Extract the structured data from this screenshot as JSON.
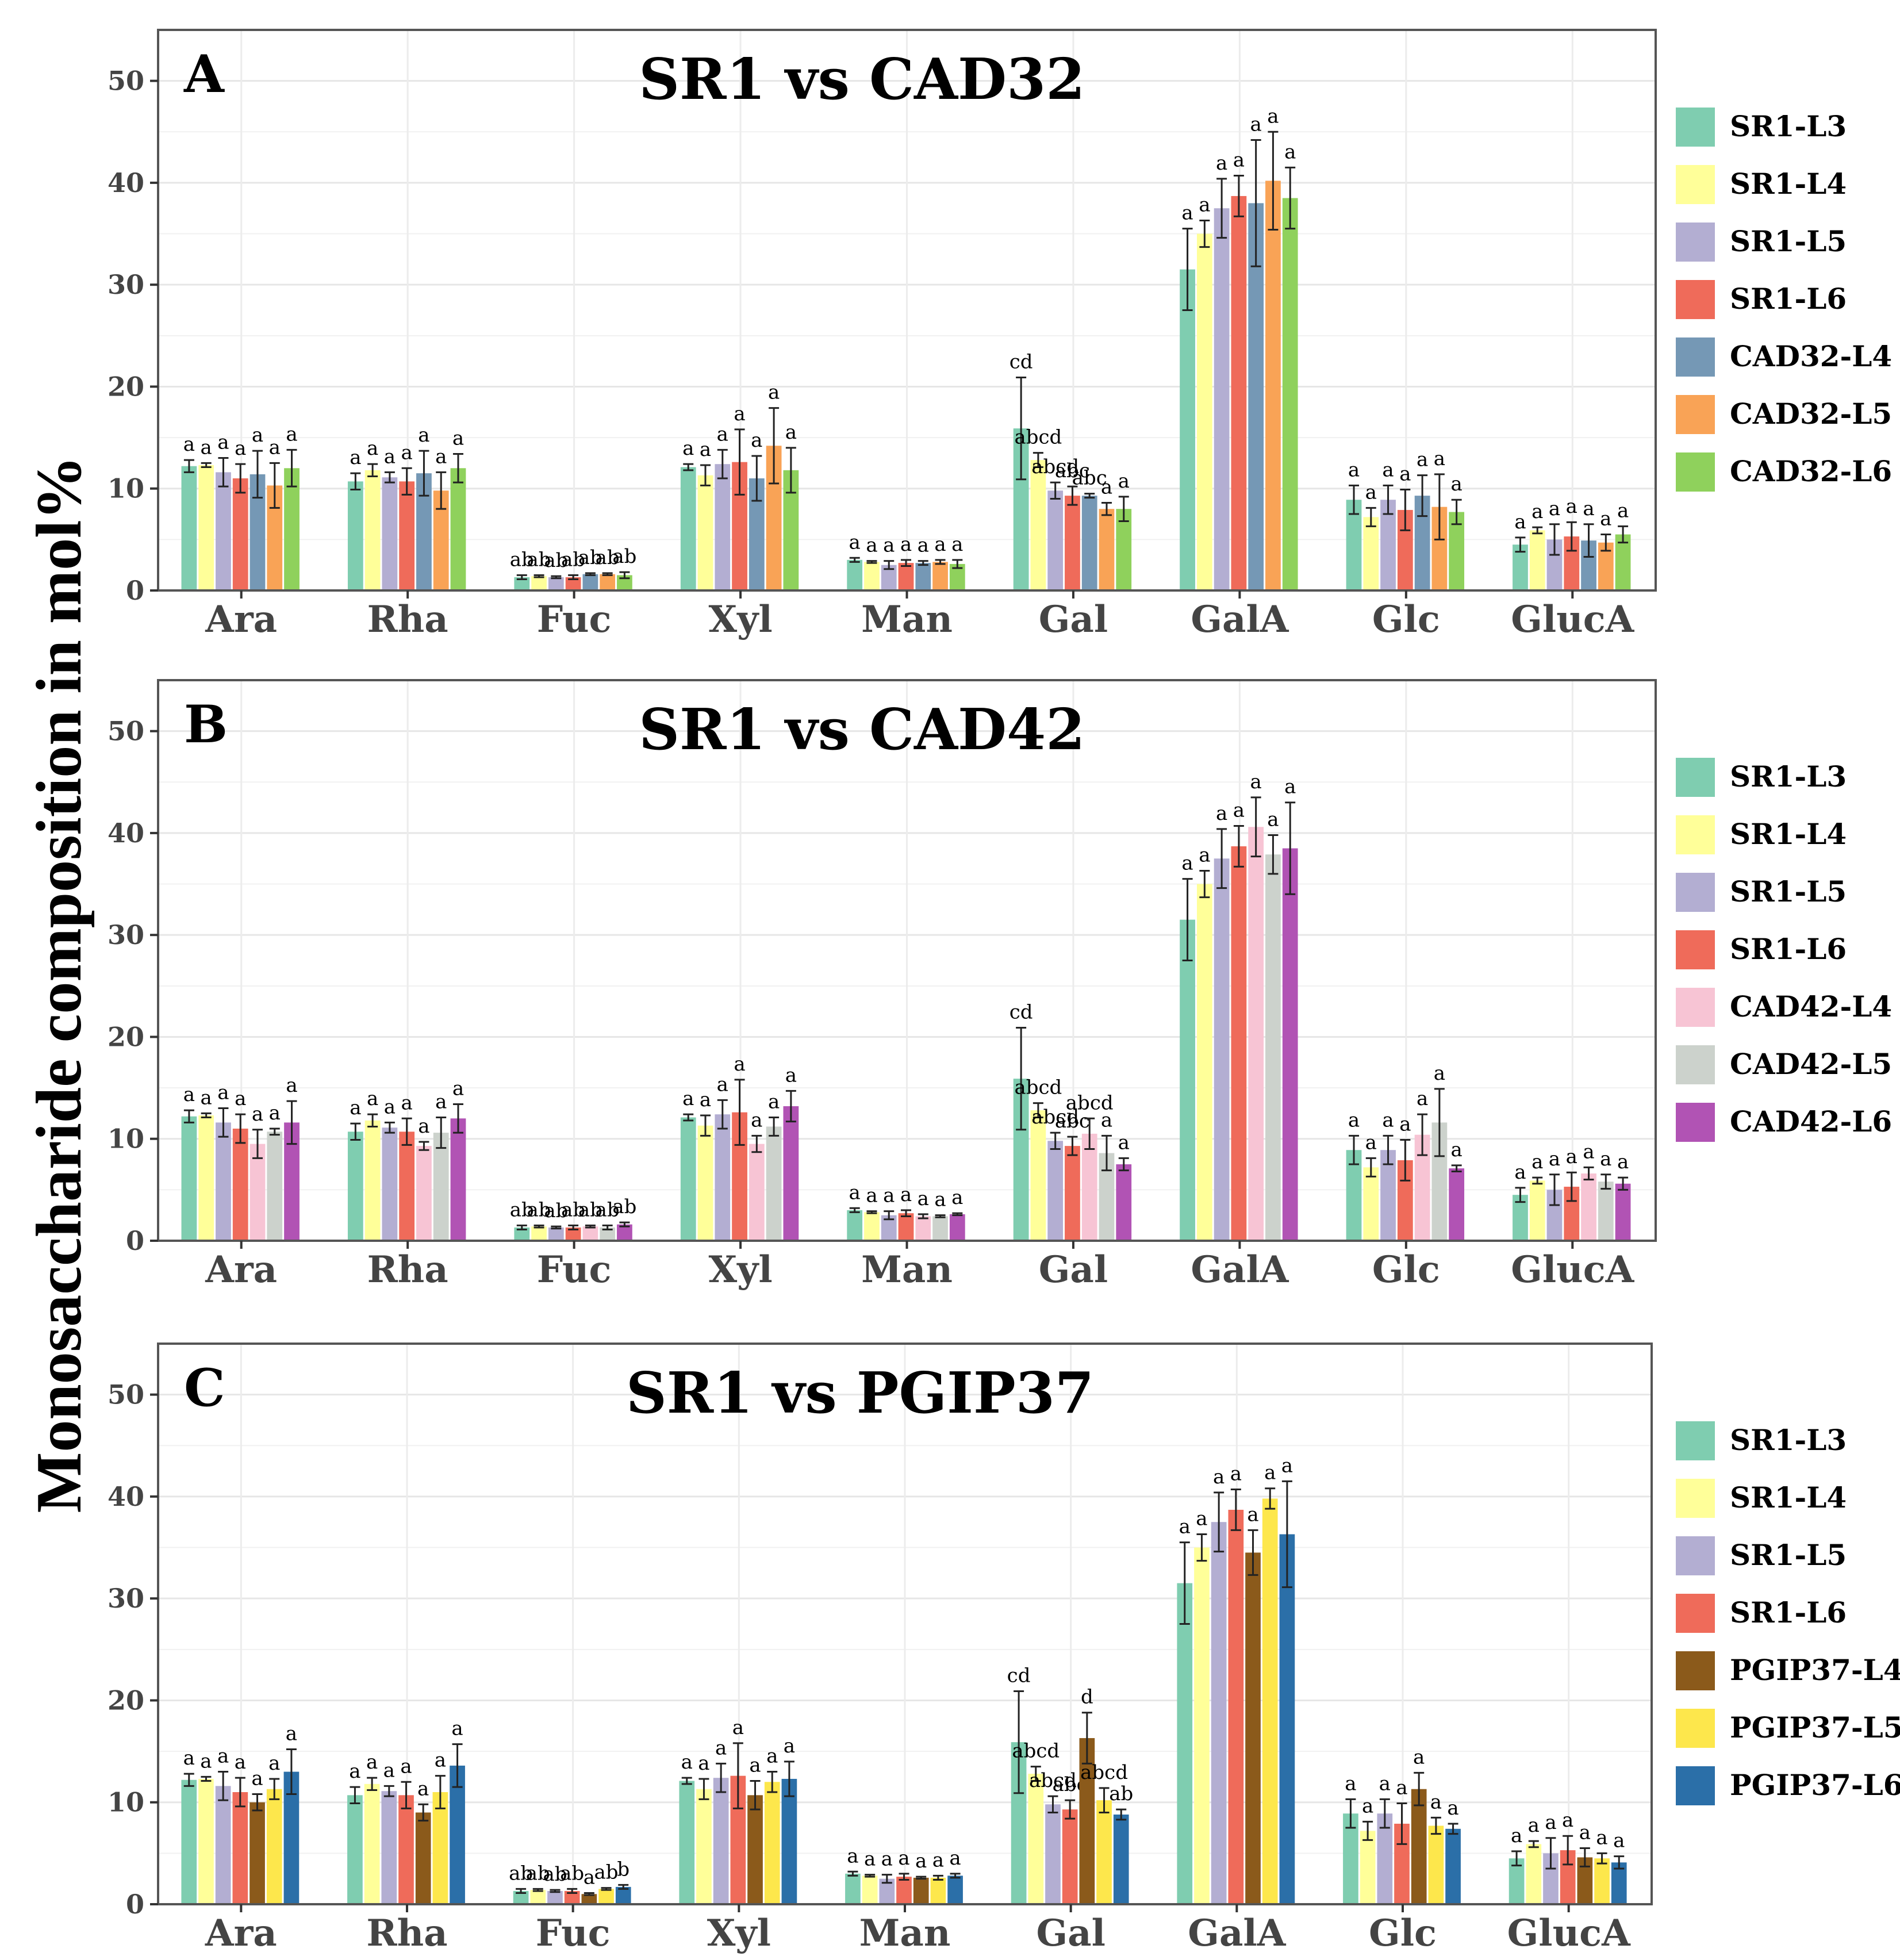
{
  "ylabel": "Monosaccharide   composition in mol%",
  "chart_data": [
    {
      "type": "bar",
      "panel_letter": "A",
      "title": "SR1 vs CAD32",
      "categories": [
        "Ara",
        "Rha",
        "Fuc",
        "Xyl",
        "Man",
        "Gal",
        "GalA",
        "Glc",
        "GlucA"
      ],
      "ylim": [
        0,
        55
      ],
      "yticks": [
        "0",
        "10",
        "20",
        "30",
        "40",
        "50"
      ],
      "grid": true,
      "legend_position": "right",
      "series": [
        {
          "name": "SR1-L3",
          "color": "#7fcdb0",
          "values": [
            12.2,
            10.7,
            1.3,
            12.1,
            3.0,
            15.9,
            31.5,
            8.9,
            4.5
          ],
          "errors": [
            0.6,
            0.8,
            0.2,
            0.3,
            0.2,
            5.0,
            4.0,
            1.4,
            0.7
          ],
          "letters": [
            "a",
            "a",
            "ab",
            "a",
            "a",
            "cd",
            "a",
            "a",
            "a"
          ]
        },
        {
          "name": "SR1-L4",
          "color": "#ffff99",
          "values": [
            12.3,
            11.8,
            1.4,
            11.3,
            2.8,
            12.8,
            35.0,
            7.2,
            5.9
          ],
          "errors": [
            0.2,
            0.6,
            0.1,
            1.0,
            0.1,
            0.7,
            1.3,
            0.9,
            0.3
          ],
          "letters": [
            "a",
            "a",
            "ab",
            "a",
            "a",
            "abcd",
            "a",
            "a",
            "a"
          ]
        },
        {
          "name": "SR1-L5",
          "color": "#b3aed2",
          "values": [
            11.6,
            11.1,
            1.3,
            12.4,
            2.5,
            9.8,
            37.5,
            8.9,
            5.0
          ],
          "errors": [
            1.4,
            0.5,
            0.1,
            1.4,
            0.4,
            0.8,
            2.9,
            1.4,
            1.5
          ],
          "letters": [
            "a",
            "a",
            "ab",
            "a",
            "a",
            "abcd",
            "a",
            "a",
            "a"
          ]
        },
        {
          "name": "SR1-L6",
          "color": "#ef6b5a",
          "values": [
            11.0,
            10.7,
            1.3,
            12.6,
            2.7,
            9.3,
            38.7,
            7.9,
            5.3
          ],
          "errors": [
            1.4,
            1.3,
            0.2,
            3.2,
            0.3,
            0.9,
            2.0,
            2.0,
            1.4
          ],
          "letters": [
            "a",
            "a",
            "ab",
            "a",
            "a",
            "abc",
            "a",
            "a",
            "a"
          ]
        },
        {
          "name": "CAD32-L4",
          "color": "#7598b5",
          "values": [
            11.4,
            11.5,
            1.6,
            11.0,
            2.7,
            9.3,
            38.0,
            9.3,
            4.9
          ],
          "errors": [
            2.3,
            2.2,
            0.1,
            2.2,
            0.2,
            0.2,
            6.2,
            2.0,
            1.6
          ],
          "letters": [
            "a",
            "a",
            "ab",
            "a",
            "a",
            "abc",
            "a",
            "a",
            "a"
          ]
        },
        {
          "name": "CAD32-L5",
          "color": "#f9a356",
          "values": [
            10.3,
            9.8,
            1.6,
            14.2,
            2.8,
            8.0,
            40.2,
            8.2,
            4.7
          ],
          "errors": [
            2.2,
            1.8,
            0.1,
            3.7,
            0.2,
            0.6,
            4.8,
            3.2,
            0.8
          ],
          "letters": [
            "a",
            "a",
            "ab",
            "a",
            "a",
            "a",
            "a",
            "a",
            "a"
          ]
        },
        {
          "name": "CAD32-L6",
          "color": "#8fd15c",
          "values": [
            12.0,
            12.0,
            1.5,
            11.8,
            2.6,
            8.0,
            38.5,
            7.7,
            5.5
          ],
          "errors": [
            1.8,
            1.4,
            0.3,
            2.2,
            0.4,
            1.2,
            3.0,
            1.2,
            0.8
          ],
          "letters": [
            "a",
            "a",
            "ab",
            "a",
            "a",
            "a",
            "a",
            "a",
            "a"
          ]
        }
      ]
    },
    {
      "type": "bar",
      "panel_letter": "B",
      "title": "SR1 vs CAD42",
      "categories": [
        "Ara",
        "Rha",
        "Fuc",
        "Xyl",
        "Man",
        "Gal",
        "GalA",
        "Glc",
        "GlucA"
      ],
      "ylim": [
        0,
        55
      ],
      "yticks": [
        "0",
        "10",
        "20",
        "30",
        "40",
        "50"
      ],
      "grid": true,
      "legend_position": "right",
      "series": [
        {
          "name": "SR1-L3",
          "color": "#7fcdb0",
          "values": [
            12.2,
            10.7,
            1.3,
            12.1,
            3.0,
            15.9,
            31.5,
            8.9,
            4.5
          ],
          "errors": [
            0.6,
            0.8,
            0.2,
            0.3,
            0.2,
            5.0,
            4.0,
            1.4,
            0.7
          ],
          "letters": [
            "a",
            "a",
            "ab",
            "a",
            "a",
            "cd",
            "a",
            "a",
            "a"
          ]
        },
        {
          "name": "SR1-L4",
          "color": "#ffff99",
          "values": [
            12.3,
            11.8,
            1.4,
            11.3,
            2.8,
            12.8,
            35.0,
            7.2,
            5.9
          ],
          "errors": [
            0.2,
            0.6,
            0.1,
            1.0,
            0.1,
            0.7,
            1.3,
            0.9,
            0.3
          ],
          "letters": [
            "a",
            "a",
            "ab",
            "a",
            "a",
            "abcd",
            "a",
            "a",
            "a"
          ]
        },
        {
          "name": "SR1-L5",
          "color": "#b3aed2",
          "values": [
            11.6,
            11.1,
            1.3,
            12.4,
            2.5,
            9.8,
            37.5,
            8.9,
            5.0
          ],
          "errors": [
            1.4,
            0.5,
            0.1,
            1.4,
            0.4,
            0.8,
            2.9,
            1.4,
            1.5
          ],
          "letters": [
            "a",
            "a",
            "ab",
            "a",
            "a",
            "abcd",
            "a",
            "a",
            "a"
          ]
        },
        {
          "name": "SR1-L6",
          "color": "#ef6b5a",
          "values": [
            11.0,
            10.7,
            1.3,
            12.6,
            2.7,
            9.3,
            38.7,
            7.9,
            5.3
          ],
          "errors": [
            1.4,
            1.3,
            0.2,
            3.2,
            0.3,
            0.9,
            2.0,
            2.0,
            1.4
          ],
          "letters": [
            "a",
            "a",
            "ab",
            "a",
            "a",
            "abc",
            "a",
            "a",
            "a"
          ]
        },
        {
          "name": "CAD42-L4",
          "color": "#f7c4d4",
          "values": [
            9.5,
            9.3,
            1.4,
            9.5,
            2.4,
            10.5,
            40.6,
            10.4,
            6.6
          ],
          "errors": [
            1.4,
            0.4,
            0.1,
            0.8,
            0.2,
            1.5,
            2.9,
            2.0,
            0.6
          ],
          "letters": [
            "a",
            "a",
            "ab",
            "a",
            "a",
            "abcd",
            "a",
            "a",
            "a"
          ]
        },
        {
          "name": "CAD42-L5",
          "color": "#ccd2cc",
          "values": [
            10.7,
            10.6,
            1.3,
            11.2,
            2.4,
            8.6,
            37.9,
            11.6,
            5.8
          ],
          "errors": [
            0.3,
            1.5,
            0.2,
            0.9,
            0.1,
            1.7,
            1.9,
            3.3,
            0.7
          ],
          "letters": [
            "a",
            "a",
            "ab",
            "a",
            "a",
            "a",
            "a",
            "a",
            "a"
          ]
        },
        {
          "name": "CAD42-L6",
          "color": "#b153b4",
          "values": [
            11.6,
            12.0,
            1.6,
            13.2,
            2.6,
            7.5,
            38.5,
            7.1,
            5.6
          ],
          "errors": [
            2.1,
            1.4,
            0.2,
            1.5,
            0.1,
            0.6,
            4.5,
            0.3,
            0.6
          ],
          "letters": [
            "a",
            "a",
            "ab",
            "a",
            "a",
            "a",
            "a",
            "a",
            "a"
          ]
        }
      ]
    },
    {
      "type": "bar",
      "panel_letter": "C",
      "title": "SR1 vs PGIP37",
      "categories": [
        "Ara",
        "Rha",
        "Fuc",
        "Xyl",
        "Man",
        "Gal",
        "GalA",
        "Glc",
        "GlucA"
      ],
      "ylim": [
        0,
        55
      ],
      "yticks": [
        "0",
        "10",
        "20",
        "30",
        "40",
        "50"
      ],
      "grid": true,
      "legend_position": "right",
      "series": [
        {
          "name": "SR1-L3",
          "color": "#7fcdb0",
          "values": [
            12.2,
            10.7,
            1.3,
            12.1,
            3.0,
            15.9,
            31.5,
            8.9,
            4.5
          ],
          "errors": [
            0.6,
            0.8,
            0.2,
            0.3,
            0.2,
            5.0,
            4.0,
            1.4,
            0.7
          ],
          "letters": [
            "a",
            "a",
            "ab",
            "a",
            "a",
            "cd",
            "a",
            "a",
            "a"
          ]
        },
        {
          "name": "SR1-L4",
          "color": "#ffff99",
          "values": [
            12.3,
            11.8,
            1.4,
            11.3,
            2.8,
            12.8,
            35.0,
            7.2,
            5.9
          ],
          "errors": [
            0.2,
            0.6,
            0.1,
            1.0,
            0.1,
            0.7,
            1.3,
            0.9,
            0.3
          ],
          "letters": [
            "a",
            "a",
            "ab",
            "a",
            "a",
            "abcd",
            "a",
            "a",
            "a"
          ]
        },
        {
          "name": "SR1-L5",
          "color": "#b3aed2",
          "values": [
            11.6,
            11.1,
            1.3,
            12.4,
            2.5,
            9.8,
            37.5,
            8.9,
            5.0
          ],
          "errors": [
            1.4,
            0.5,
            0.1,
            1.4,
            0.4,
            0.8,
            2.9,
            1.4,
            1.5
          ],
          "letters": [
            "a",
            "a",
            "ab",
            "a",
            "a",
            "abcd",
            "a",
            "a",
            "a"
          ]
        },
        {
          "name": "SR1-L6",
          "color": "#ef6b5a",
          "values": [
            11.0,
            10.7,
            1.3,
            12.6,
            2.7,
            9.3,
            38.7,
            7.9,
            5.3
          ],
          "errors": [
            1.4,
            1.3,
            0.2,
            3.2,
            0.3,
            0.9,
            2.0,
            2.0,
            1.4
          ],
          "letters": [
            "a",
            "a",
            "ab",
            "a",
            "a",
            "abc",
            "a",
            "a",
            "a"
          ]
        },
        {
          "name": "PGIP37-L4",
          "color": "#8b5a1b",
          "values": [
            10.0,
            9.0,
            1.0,
            10.7,
            2.6,
            16.3,
            34.5,
            11.3,
            4.6
          ],
          "errors": [
            0.8,
            0.8,
            0.1,
            1.4,
            0.1,
            2.5,
            2.2,
            1.6,
            0.9
          ],
          "letters": [
            "a",
            "a",
            "a",
            "a",
            "a",
            "d",
            "a",
            "a",
            "a"
          ]
        },
        {
          "name": "PGIP37-L5",
          "color": "#fde74c",
          "values": [
            11.3,
            11.0,
            1.5,
            12.0,
            2.6,
            10.2,
            39.8,
            7.7,
            4.5
          ],
          "errors": [
            1.0,
            1.6,
            0.1,
            1.0,
            0.2,
            1.2,
            1.0,
            0.8,
            0.5
          ],
          "letters": [
            "a",
            "a",
            "ab",
            "a",
            "a",
            "abcd",
            "a",
            "a",
            "a"
          ]
        },
        {
          "name": "PGIP37-L6",
          "color": "#2b6fa8",
          "values": [
            13.0,
            13.6,
            1.7,
            12.3,
            2.8,
            8.8,
            36.3,
            7.4,
            4.1
          ],
          "errors": [
            2.2,
            2.1,
            0.2,
            1.7,
            0.2,
            0.5,
            5.2,
            0.5,
            0.6
          ],
          "letters": [
            "a",
            "a",
            "b",
            "a",
            "a",
            "ab",
            "a",
            "a",
            "a"
          ]
        }
      ]
    }
  ]
}
